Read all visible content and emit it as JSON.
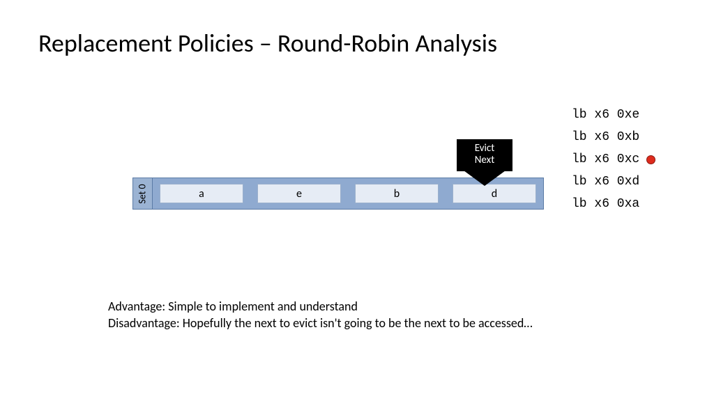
{
  "title": "Replacement Policies – Round-Robin Analysis",
  "set": {
    "label": "Set 0",
    "cells": [
      "a",
      "e",
      "b",
      "d"
    ],
    "bg_color": "#8faad0",
    "cell_color": "#e6ecf5",
    "border_color": "#5b7ba5",
    "label_bg": "#9bb3d3"
  },
  "evict": {
    "line1": "Evict",
    "line2": "Next",
    "color": "#000000",
    "text_color": "#ffffff"
  },
  "instructions": [
    {
      "text": "lb x6 0xe",
      "current": false
    },
    {
      "text": "lb x6 0xb",
      "current": false
    },
    {
      "text": "lb x6 0xc",
      "current": true
    },
    {
      "text": "lb x6 0xd",
      "current": false
    },
    {
      "text": "lb x6 0xa",
      "current": false
    }
  ],
  "marker_color": "#de2b1d",
  "advantage": "Advantage: Simple to implement and understand",
  "disadvantage": "Disadvantage: Hopefully the next to evict isn't going to be the next to be accessed…",
  "fonts": {
    "title_size": 36,
    "body_size": 18,
    "mono_family": "Courier New"
  }
}
